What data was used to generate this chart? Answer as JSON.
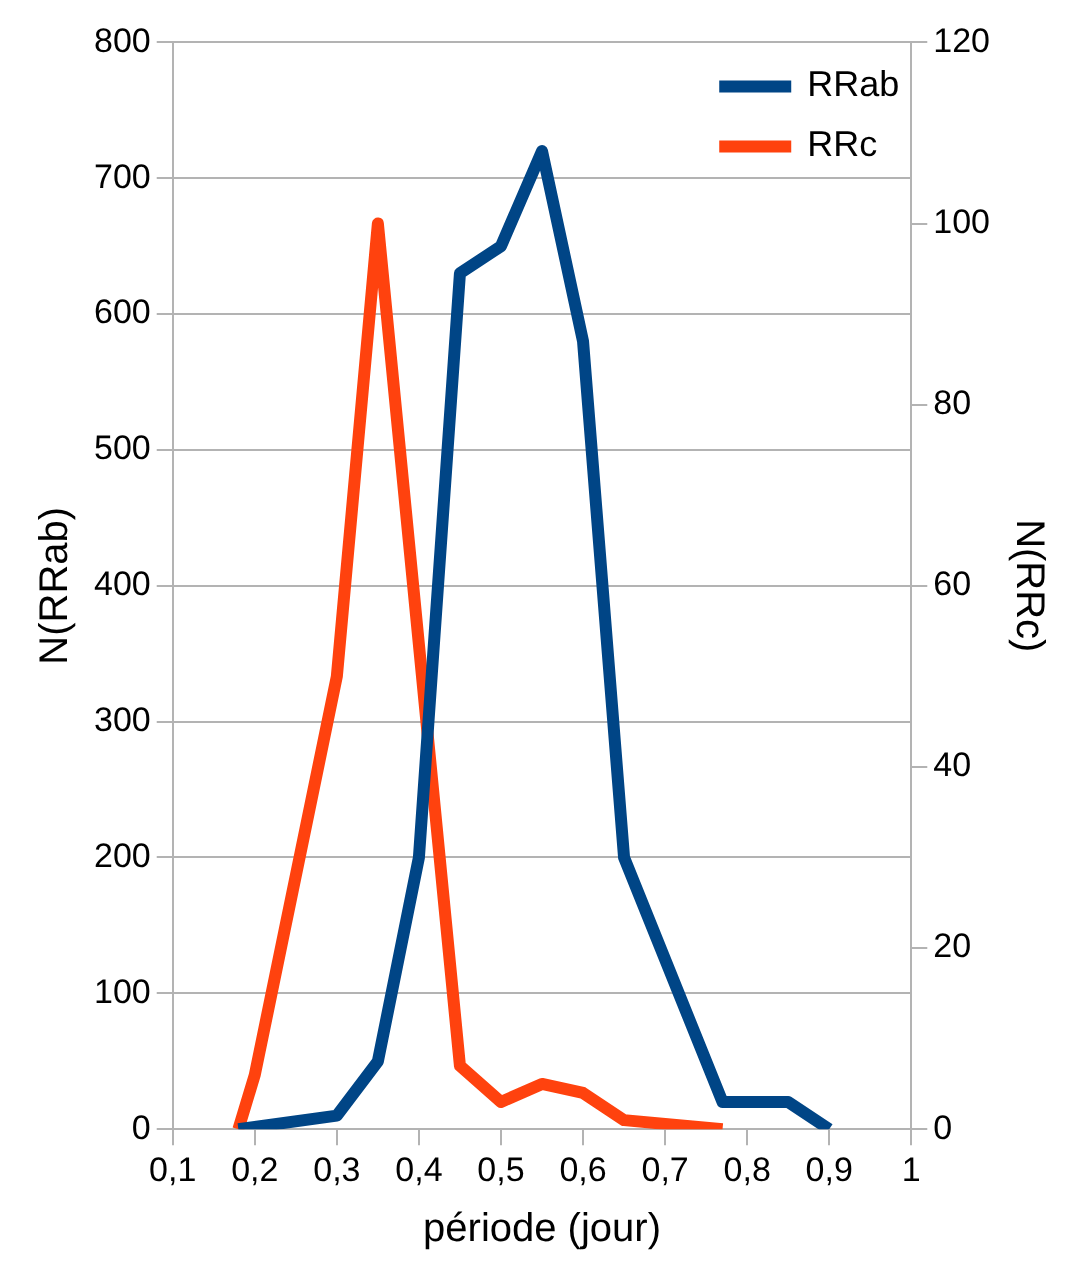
{
  "chart_data": {
    "type": "line",
    "xlabel": "période (jour)",
    "ylabel": "N(RRab)",
    "y2label": "N(RRc)",
    "xlim": [
      0.1,
      1
    ],
    "xticks": [
      {
        "value": 0.1,
        "label": "0,1"
      },
      {
        "value": 0.2,
        "label": "0,2"
      },
      {
        "value": 0.3,
        "label": "0,3"
      },
      {
        "value": 0.4,
        "label": "0,4"
      },
      {
        "value": 0.5,
        "label": "0,5"
      },
      {
        "value": 0.6,
        "label": "0,6"
      },
      {
        "value": 0.7,
        "label": "0,7"
      },
      {
        "value": 0.8,
        "label": "0,8"
      },
      {
        "value": 0.9,
        "label": "0,9"
      },
      1
    ],
    "ylim": [
      0,
      800
    ],
    "yticks": [
      0,
      100,
      200,
      300,
      400,
      500,
      600,
      700,
      800
    ],
    "y2lim": [
      0,
      120
    ],
    "y2ticks": [
      0,
      20,
      40,
      60,
      80,
      100,
      120
    ],
    "grid": "y",
    "legend": "top right",
    "marker": "none",
    "line_style": "solid",
    "series": [
      {
        "name": "RRab",
        "color": "#004586",
        "x": [
          0.18,
          0.3,
          0.35,
          0.4,
          0.45,
          0.5,
          0.55,
          0.6,
          0.65,
          0.77,
          0.85,
          0.9
        ],
        "values": [
          0,
          10,
          50,
          200,
          630,
          650,
          720,
          580,
          200,
          20,
          20,
          0
        ]
      },
      {
        "name": "RRc",
        "color": "#ff420e",
        "axis": "y2",
        "x": [
          0.18,
          0.2,
          0.3,
          0.35,
          0.45,
          0.5,
          0.55,
          0.6,
          0.65,
          0.77
        ],
        "values": [
          0,
          6,
          50,
          100,
          7,
          3,
          5,
          4,
          1,
          0
        ]
      }
    ]
  }
}
